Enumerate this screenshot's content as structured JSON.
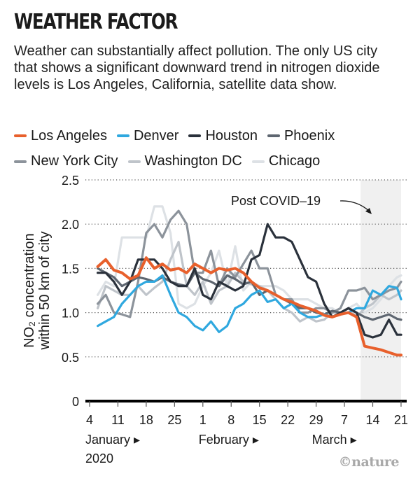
{
  "header": {
    "title": "WEATHER FACTOR",
    "subtitle": "Weather can substantially affect pollution. The only US city that shows a significant downward trend in nitrogen dioxide levels is Los Angeles, California, satellite data show."
  },
  "credit": "©nature",
  "chart_data": {
    "type": "line",
    "title": "WEATHER FACTOR",
    "xlabel": "",
    "ylabel_line1": "NO₂ concentration",
    "ylabel_line2": "within 50 km of city",
    "ylim": [
      0,
      2.5
    ],
    "yticks": [
      "0",
      "0.5",
      "1.0",
      "1.5",
      "2.0",
      "2.5"
    ],
    "ytick_values": [
      0,
      0.5,
      1.0,
      1.5,
      2.0,
      2.5
    ],
    "grid": "horizontal-dotted",
    "x_start_date": "2020-01-04",
    "x_unit": "days since 4 January 2020",
    "xlim": [
      0,
      77
    ],
    "xticks": [
      "4",
      "11",
      "18",
      "25",
      "1",
      "8",
      "15",
      "22",
      "29",
      "7",
      "14",
      "21"
    ],
    "xtick_days": [
      0,
      7,
      14,
      21,
      28,
      35,
      42,
      49,
      56,
      63,
      70,
      77
    ],
    "month_labels": [
      {
        "label": "January ▸",
        "day": 0
      },
      {
        "label": "February ▸",
        "day": 28
      },
      {
        "label": "March ▸",
        "day": 56
      }
    ],
    "year_label": "2020",
    "legend_placement": "top",
    "annotation": {
      "text": "Post COVID–19",
      "shaded_from_day": 67,
      "shaded_to_day": 77
    },
    "x": [
      2,
      4,
      6,
      8,
      10,
      12,
      14,
      16,
      18,
      20,
      22,
      24,
      26,
      28,
      30,
      32,
      34,
      36,
      38,
      40,
      42,
      44,
      46,
      48,
      50,
      52,
      54,
      56,
      58,
      60,
      62,
      64,
      66,
      68,
      70,
      72,
      74,
      76,
      77
    ],
    "series": [
      {
        "name": "Los Angeles",
        "color": "#e8602c",
        "values": [
          1.52,
          1.6,
          1.48,
          1.45,
          1.38,
          1.42,
          1.62,
          1.5,
          1.55,
          1.48,
          1.5,
          1.45,
          1.55,
          1.5,
          1.45,
          1.5,
          1.48,
          1.5,
          1.45,
          1.35,
          1.28,
          1.25,
          1.2,
          1.15,
          1.12,
          1.08,
          1.05,
          1.02,
          0.97,
          0.95,
          0.98,
          1.0,
          0.95,
          0.62,
          0.6,
          0.58,
          0.55,
          0.52,
          0.52
        ]
      },
      {
        "name": "Denver",
        "color": "#2fa8df",
        "values": [
          0.85,
          0.9,
          0.95,
          1.1,
          1.2,
          1.3,
          1.35,
          1.35,
          1.42,
          1.2,
          1.0,
          0.95,
          0.85,
          0.8,
          0.9,
          0.78,
          0.85,
          1.05,
          1.1,
          1.2,
          1.25,
          1.12,
          1.15,
          1.05,
          1.1,
          1.0,
          0.95,
          0.95,
          0.98,
          0.95,
          0.98,
          1.0,
          1.05,
          1.05,
          1.25,
          1.2,
          1.3,
          1.28,
          1.15
        ]
      },
      {
        "name": "Houston",
        "color": "#2a313b",
        "values": [
          1.45,
          1.45,
          1.35,
          1.2,
          1.35,
          1.6,
          1.6,
          1.6,
          1.5,
          1.35,
          1.3,
          1.3,
          1.5,
          1.2,
          1.15,
          1.35,
          1.3,
          1.25,
          1.3,
          1.6,
          1.65,
          2.0,
          1.85,
          1.85,
          1.8,
          1.6,
          1.4,
          1.35,
          1.1,
          0.95,
          1.0,
          1.05,
          1.0,
          0.75,
          0.72,
          0.75,
          0.92,
          0.75,
          0.75
        ]
      },
      {
        "name": "Phoenix",
        "color": "#5e6670",
        "values": [
          1.5,
          1.45,
          1.4,
          1.3,
          1.35,
          1.4,
          1.38,
          1.35,
          1.4,
          1.35,
          1.32,
          1.3,
          1.45,
          1.38,
          1.35,
          1.3,
          1.42,
          1.38,
          1.32,
          1.35,
          1.2,
          1.25,
          1.2,
          1.15,
          1.1,
          1.05,
          1.05,
          1.0,
          0.98,
          1.02,
          1.0,
          1.05,
          1.0,
          0.95,
          0.92,
          0.95,
          0.98,
          0.93,
          0.92
        ]
      },
      {
        "name": "New York City",
        "color": "#8c939b",
        "values": [
          1.1,
          1.2,
          1.0,
          0.98,
          0.95,
          1.35,
          1.9,
          2.0,
          1.85,
          2.05,
          2.15,
          2.0,
          1.45,
          1.45,
          1.7,
          1.3,
          1.5,
          1.4,
          1.55,
          1.7,
          1.5,
          1.5,
          1.2,
          1.15,
          1.15,
          1.0,
          1.0,
          1.05,
          1.05,
          1.0,
          1.05,
          1.25,
          1.25,
          1.28,
          1.15,
          1.2,
          1.25,
          1.28,
          1.35
        ]
      },
      {
        "name": "Washington DC",
        "color": "#bfc4ca",
        "values": [
          1.05,
          1.3,
          1.25,
          1.2,
          1.2,
          1.3,
          1.2,
          1.28,
          1.35,
          1.6,
          1.8,
          1.3,
          1.2,
          1.35,
          1.1,
          1.25,
          1.3,
          1.45,
          1.35,
          1.32,
          1.3,
          1.25,
          1.15,
          1.05,
          1.0,
          0.9,
          0.95,
          0.9,
          0.92,
          1.0,
          1.0,
          1.05,
          0.95,
          1.05,
          1.1,
          1.2,
          1.15,
          1.2,
          1.25
        ]
      },
      {
        "name": "Chicago",
        "color": "#dde1e5",
        "values": [
          1.2,
          1.35,
          1.3,
          1.85,
          1.85,
          1.85,
          1.85,
          2.2,
          2.2,
          1.9,
          1.1,
          1.05,
          1.1,
          1.3,
          1.45,
          1.7,
          1.3,
          1.75,
          1.25,
          1.35,
          1.3,
          1.3,
          1.3,
          1.25,
          1.15,
          1.15,
          1.15,
          1.1,
          1.05,
          1.05,
          0.98,
          1.05,
          1.1,
          1.0,
          1.05,
          1.15,
          1.3,
          1.4,
          1.42
        ]
      }
    ]
  }
}
